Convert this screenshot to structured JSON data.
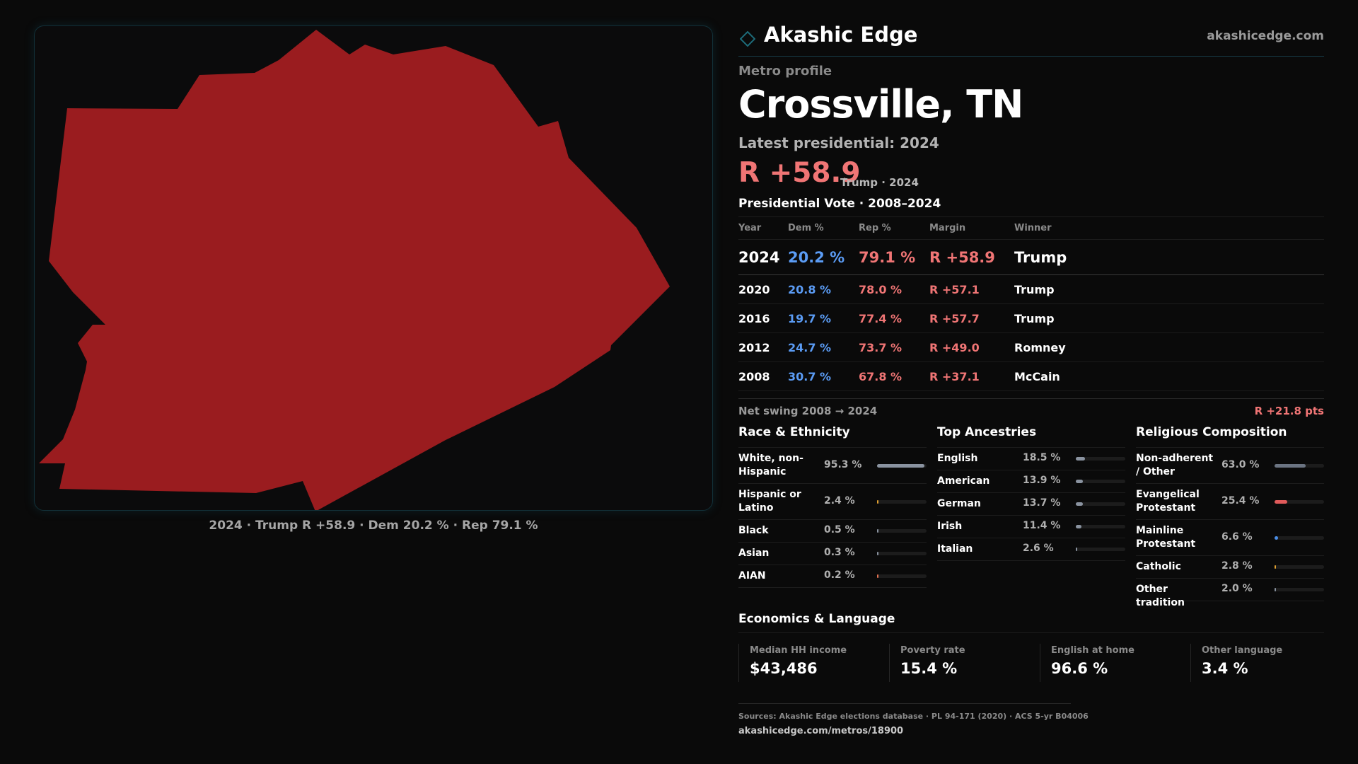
{
  "colors": {
    "background": "#0a0a0a",
    "county_fill": "#9a1c1f",
    "accent": "#14454f",
    "dem": "#5b9cf5",
    "rep": "#f07575"
  },
  "map": {
    "caption": "2024 · Trump R +58.9 · Dem 20.2 % · Rep 79.1 %"
  },
  "header": {
    "logo_icon": "diamond-outline-icon",
    "brand": "Akashic Edge",
    "site": "akashicedge.com"
  },
  "profile": {
    "kicker": "Metro profile",
    "title": "Crossville, TN",
    "latest_label": "Latest presidential: 2024",
    "margin": "R +58.9",
    "margin_sub": "Trump · 2024"
  },
  "votes": {
    "title": "Presidential Vote · 2008–2024",
    "headers": {
      "year": "Year",
      "dem": "Dem %",
      "rep": "Rep %",
      "margin": "Margin",
      "winner": "Winner"
    },
    "rows": [
      {
        "year": "2024",
        "dem": "20.2 %",
        "rep": "79.1 %",
        "margin": "R +58.9",
        "winner": "Trump"
      },
      {
        "year": "2020",
        "dem": "20.8 %",
        "rep": "78.0 %",
        "margin": "R +57.1",
        "winner": "Trump"
      },
      {
        "year": "2016",
        "dem": "19.7 %",
        "rep": "77.4 %",
        "margin": "R +57.7",
        "winner": "Trump"
      },
      {
        "year": "2012",
        "dem": "24.7 %",
        "rep": "73.7 %",
        "margin": "R +49.0",
        "winner": "Romney"
      },
      {
        "year": "2008",
        "dem": "30.7 %",
        "rep": "67.8 %",
        "margin": "R +37.1",
        "winner": "McCain"
      }
    ],
    "swing_label": "Net swing 2008 → 2024",
    "swing_value": "R +21.8 pts"
  },
  "race": {
    "title": "Race & Ethnicity",
    "rows": [
      {
        "label": "White, non-Hispanic",
        "pct": "95.3 %",
        "value": 95.3,
        "color": "#8a93a0"
      },
      {
        "label": "Hispanic or Latino",
        "pct": "2.4 %",
        "value": 2.4,
        "color": "#e0a030"
      },
      {
        "label": "Black",
        "pct": "0.5 %",
        "value": 0.5,
        "color": "#8a93a0"
      },
      {
        "label": "Asian",
        "pct": "0.3 %",
        "value": 0.3,
        "color": "#8a93a0"
      },
      {
        "label": "AIAN",
        "pct": "0.2 %",
        "value": 0.2,
        "color": "#e07050"
      }
    ]
  },
  "ancestry": {
    "title": "Top Ancestries",
    "rows": [
      {
        "label": "English",
        "pct": "18.5 %",
        "value": 18.5,
        "color": "#8a93a0"
      },
      {
        "label": "American",
        "pct": "13.9 %",
        "value": 13.9,
        "color": "#8a93a0"
      },
      {
        "label": "German",
        "pct": "13.7 %",
        "value": 13.7,
        "color": "#8a93a0"
      },
      {
        "label": "Irish",
        "pct": "11.4 %",
        "value": 11.4,
        "color": "#8a93a0"
      },
      {
        "label": "Italian",
        "pct": "2.6 %",
        "value": 2.6,
        "color": "#8a93a0"
      }
    ]
  },
  "religion": {
    "title": "Religious Composition",
    "rows": [
      {
        "label": "Non-adherent / Other",
        "pct": "63.0 %",
        "value": 63.0,
        "color": "#6b7482"
      },
      {
        "label": "Evangelical Protestant",
        "pct": "25.4 %",
        "value": 25.4,
        "color": "#e05a5a"
      },
      {
        "label": "Mainline Protestant",
        "pct": "6.6 %",
        "value": 6.6,
        "color": "#4a8ee8"
      },
      {
        "label": "Catholic",
        "pct": "2.8 %",
        "value": 2.8,
        "color": "#e0a030"
      },
      {
        "label": "Other tradition",
        "pct": "2.0 %",
        "value": 2.0,
        "color": "#8a93a0"
      }
    ]
  },
  "economics": {
    "title": "Economics & Language",
    "stats": [
      {
        "label": "Median HH income",
        "value": "$43,486"
      },
      {
        "label": "Poverty rate",
        "value": "15.4 %"
      },
      {
        "label": "English at home",
        "value": "96.6 %"
      },
      {
        "label": "Other language",
        "value": "3.4 %"
      }
    ]
  },
  "footer": {
    "sources": "Sources: Akashic Edge elections database · PL 94-171 (2020) · ACS 5-yr B04006",
    "url": "akashicedge.com/metros/18900"
  }
}
